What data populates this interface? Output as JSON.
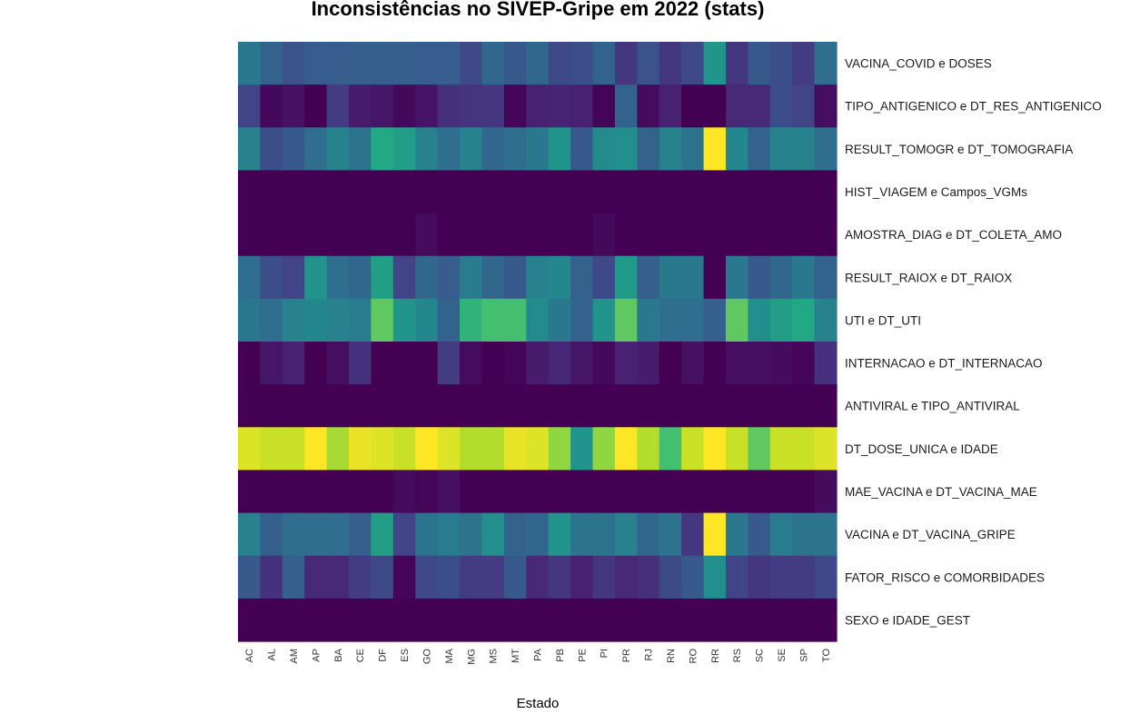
{
  "chart_data": {
    "type": "heatmap",
    "title": "Inconsistências no SIVEP-Gripe em 2022 (stats)",
    "xlabel": "Estado",
    "ylabel": "",
    "legend": "none",
    "grid": false,
    "colormap": "viridis",
    "value_range": [
      0,
      1
    ],
    "columns": [
      "AC",
      "AL",
      "AM",
      "AP",
      "BA",
      "CE",
      "DF",
      "ES",
      "GO",
      "MA",
      "MG",
      "MS",
      "MT",
      "PA",
      "PB",
      "PE",
      "PI",
      "PR",
      "RJ",
      "RN",
      "RO",
      "RR",
      "RS",
      "SC",
      "SE",
      "SP",
      "TO"
    ],
    "rows": [
      "VACINA_COVID e DOSES",
      "TIPO_ANTIGENICO e DT_RES_ANTIGENICO",
      "RESULT_TOMOGR e DT_TOMOGRAFIA",
      "HIST_VIAGEM e Campos_VGMs",
      "AMOSTRA_DIAG e DT_COLETA_AMO",
      "RESULT_RAIOX e DT_RAIOX",
      "UTI e DT_UTI",
      "INTERNACAO e DT_INTERNACAO",
      "ANTIVIRAL e TIPO_ANTIVIRAL",
      "DT_DOSE_UNICA e IDADE",
      "MAE_VACINA e DT_VACINA_MAE",
      "VACINA e DT_VACINA_GRIPE",
      "FATOR_RISCO e COMORBIDADES",
      "SEXO e IDADE_GEST"
    ],
    "values": [
      [
        0.5,
        0.4,
        0.32,
        0.37,
        0.37,
        0.38,
        0.38,
        0.38,
        0.37,
        0.37,
        0.28,
        0.42,
        0.35,
        0.42,
        0.28,
        0.3,
        0.4,
        0.2,
        0.32,
        0.2,
        0.28,
        0.65,
        0.2,
        0.35,
        0.3,
        0.22,
        0.45
      ],
      [
        0.25,
        0.03,
        0.06,
        0.0,
        0.22,
        0.1,
        0.08,
        0.03,
        0.07,
        0.17,
        0.19,
        0.2,
        0.02,
        0.12,
        0.13,
        0.12,
        0.01,
        0.4,
        0.04,
        0.12,
        0.0,
        0.0,
        0.15,
        0.15,
        0.3,
        0.25,
        0.05
      ],
      [
        0.55,
        0.3,
        0.35,
        0.45,
        0.55,
        0.48,
        0.75,
        0.7,
        0.55,
        0.45,
        0.55,
        0.42,
        0.45,
        0.5,
        0.65,
        0.35,
        0.6,
        0.62,
        0.4,
        0.55,
        0.48,
        1.0,
        0.58,
        0.4,
        0.55,
        0.55,
        0.45
      ],
      [
        0,
        0,
        0,
        0,
        0,
        0,
        0,
        0,
        0,
        0,
        0,
        0,
        0,
        0,
        0,
        0,
        0,
        0,
        0,
        0,
        0,
        0,
        0,
        0,
        0,
        0,
        0
      ],
      [
        0,
        0,
        0,
        0,
        0,
        0,
        0,
        0,
        0.04,
        0,
        0,
        0,
        0,
        0,
        0,
        0,
        0.03,
        0,
        0,
        0,
        0,
        0,
        0,
        0,
        0,
        0,
        0
      ],
      [
        0.45,
        0.3,
        0.25,
        0.65,
        0.45,
        0.42,
        0.7,
        0.25,
        0.42,
        0.37,
        0.52,
        0.42,
        0.35,
        0.55,
        0.58,
        0.4,
        0.28,
        0.68,
        0.38,
        0.5,
        0.5,
        0.0,
        0.5,
        0.35,
        0.42,
        0.5,
        0.4
      ],
      [
        0.5,
        0.45,
        0.55,
        0.58,
        0.55,
        0.52,
        0.85,
        0.65,
        0.58,
        0.4,
        0.78,
        0.82,
        0.82,
        0.6,
        0.5,
        0.4,
        0.65,
        0.85,
        0.5,
        0.45,
        0.45,
        0.38,
        0.85,
        0.62,
        0.7,
        0.75,
        0.55
      ],
      [
        0.0,
        0.08,
        0.12,
        0.0,
        0.05,
        0.18,
        0.0,
        0.0,
        0.0,
        0.22,
        0.04,
        0.0,
        0.02,
        0.1,
        0.14,
        0.08,
        0.03,
        0.12,
        0.1,
        0.0,
        0.06,
        0.0,
        0.05,
        0.05,
        0.04,
        0.02,
        0.18
      ],
      [
        0,
        0,
        0,
        0,
        0,
        0,
        0,
        0,
        0,
        0,
        0,
        0,
        0,
        0,
        0,
        0,
        0,
        0,
        0,
        0,
        0,
        0,
        0,
        0,
        0,
        0,
        0
      ],
      [
        0.97,
        0.95,
        0.95,
        1.0,
        0.92,
        0.98,
        0.97,
        0.95,
        1.0,
        0.97,
        0.93,
        0.93,
        0.98,
        0.97,
        0.9,
        0.65,
        0.9,
        1.0,
        0.93,
        0.82,
        0.95,
        1.0,
        0.95,
        0.85,
        0.95,
        0.95,
        0.97
      ],
      [
        0,
        0,
        0,
        0,
        0,
        0,
        0,
        0.04,
        0.02,
        0.05,
        0,
        0,
        0,
        0,
        0,
        0,
        0,
        0,
        0,
        0,
        0,
        0,
        0,
        0,
        0,
        0,
        0.04
      ],
      [
        0.55,
        0.38,
        0.45,
        0.45,
        0.45,
        0.38,
        0.7,
        0.25,
        0.48,
        0.52,
        0.48,
        0.62,
        0.4,
        0.42,
        0.65,
        0.48,
        0.48,
        0.55,
        0.42,
        0.48,
        0.2,
        1.0,
        0.5,
        0.35,
        0.52,
        0.48,
        0.48
      ],
      [
        0.35,
        0.18,
        0.38,
        0.15,
        0.15,
        0.22,
        0.28,
        0.02,
        0.27,
        0.3,
        0.22,
        0.22,
        0.35,
        0.15,
        0.2,
        0.12,
        0.2,
        0.15,
        0.17,
        0.28,
        0.35,
        0.62,
        0.25,
        0.2,
        0.22,
        0.22,
        0.27
      ],
      [
        0,
        0,
        0,
        0,
        0,
        0,
        0,
        0,
        0,
        0,
        0,
        0,
        0,
        0,
        0,
        0,
        0,
        0,
        0,
        0,
        0,
        0,
        0,
        0,
        0,
        0,
        0
      ]
    ]
  }
}
